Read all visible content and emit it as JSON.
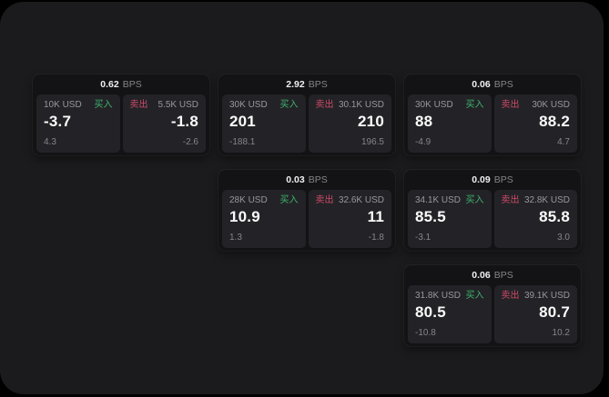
{
  "labels": {
    "buy": "买入",
    "sell": "卖出",
    "bps": "BPS"
  },
  "colors": {
    "background": "#000000",
    "surface": "#1b1b1d",
    "card": "#131315",
    "tile": "#232327",
    "buy_green": "#3eb36d",
    "sell_red": "#ce4a68",
    "muted_text": "#8f8f94",
    "primary_text": "#fafafa"
  },
  "cards": [
    {
      "spread_bps": "0.62",
      "buy": {
        "size": "10K USD",
        "price": "-3.7",
        "sub": "4.3"
      },
      "sell": {
        "size": "5.5K USD",
        "price": "-1.8",
        "sub": "-2.6"
      }
    },
    {
      "spread_bps": "2.92",
      "buy": {
        "size": "30K USD",
        "price": "201",
        "sub": "-188.1"
      },
      "sell": {
        "size": "30.1K USD",
        "price": "210",
        "sub": "196.5"
      }
    },
    {
      "spread_bps": "0.06",
      "buy": {
        "size": "30K USD",
        "price": "88",
        "sub": "-4.9"
      },
      "sell": {
        "size": "30K USD",
        "price": "88.2",
        "sub": "4.7"
      }
    },
    {
      "spread_bps": "0.03",
      "buy": {
        "size": "28K USD",
        "price": "10.9",
        "sub": "1.3"
      },
      "sell": {
        "size": "32.6K USD",
        "price": "11",
        "sub": "-1.8"
      }
    },
    {
      "spread_bps": "0.09",
      "buy": {
        "size": "34.1K USD",
        "price": "85.5",
        "sub": "-3.1"
      },
      "sell": {
        "size": "32.8K USD",
        "price": "85.8",
        "sub": "3.0"
      }
    },
    {
      "spread_bps": "0.06",
      "buy": {
        "size": "31.8K USD",
        "price": "80.5",
        "sub": "-10.8"
      },
      "sell": {
        "size": "39.1K USD",
        "price": "80.7",
        "sub": "10.2"
      }
    }
  ]
}
